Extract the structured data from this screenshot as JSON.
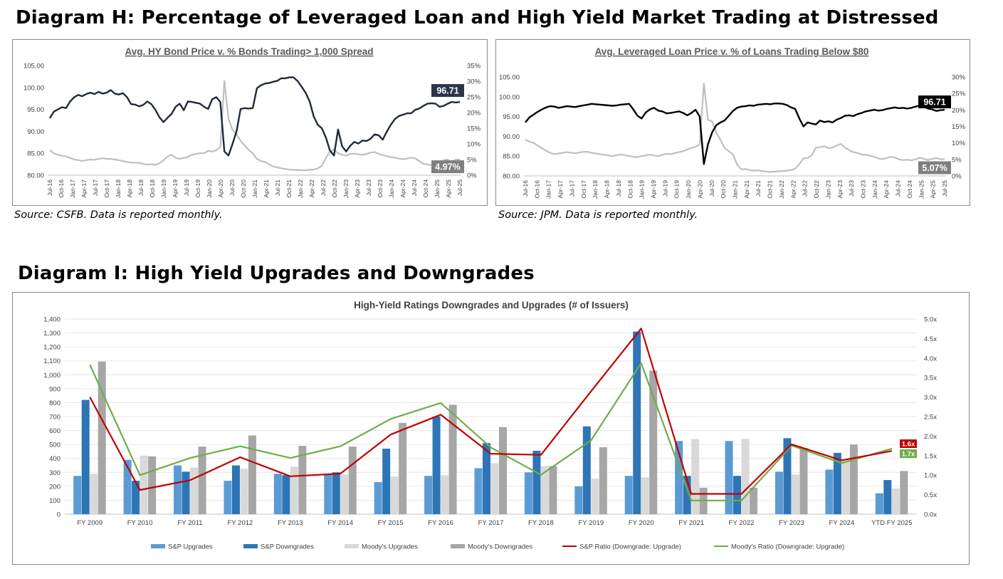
{
  "diagram_h": {
    "heading": "Diagram H: Percentage of Leveraged Loan and High Yield Market Trading at Distressed",
    "left_source": "Source: CSFB. Data is reported monthly.",
    "right_source": "Source: JPM. Data is reported monthly."
  },
  "diagram_i": {
    "heading": "Diagram I: High Yield Upgrades and Downgrades"
  },
  "colors": {
    "sp_upgrades": "#5b9bd5",
    "sp_downgrades": "#2e75b6",
    "moodys_upgrades": "#d9d9d9",
    "moodys_downgrades": "#a6a6a6",
    "sp_ratio": "#c00000",
    "moodys_ratio": "#70ad47",
    "hy_price_line": "#1f2a3a",
    "loan_price_line": "#000000",
    "pct_line": "#bfbfbf"
  },
  "chart_data": [
    {
      "type": "line",
      "title": "Avg. HY Bond Price v. % Bonds Trading> 1,000 Spread",
      "x_ticks": [
        "Jul-16",
        "Oct-16",
        "Jan-17",
        "Apr-17",
        "Jul-17",
        "Oct-17",
        "Jan-18",
        "Apr-18",
        "Jul-18",
        "Oct-18",
        "Jan-19",
        "Apr-19",
        "Jul-19",
        "Oct-19",
        "Jan-20",
        "Apr-20",
        "Jul-20",
        "Oct-20",
        "Jan-21",
        "Apr-21",
        "Jul-21",
        "Oct-21",
        "Jan-22",
        "Apr-22",
        "Jul-22",
        "Oct-22",
        "Jan-23",
        "Apr-23",
        "Jul-23",
        "Oct-23",
        "Jan-24",
        "Apr-24",
        "Jul-24",
        "Oct-24",
        "Jan-25",
        "Apr-25",
        "Jul-25"
      ],
      "y_left_ticks": [
        "80.00",
        "85.00",
        "90.00",
        "95.00",
        "100.00",
        "105.00"
      ],
      "y_left_range": [
        80,
        105
      ],
      "y_right_ticks": [
        "0%",
        "5%",
        "10%",
        "15%",
        "20%",
        "25%",
        "30%",
        "35%"
      ],
      "y_right_range": [
        0,
        35
      ],
      "series": [
        {
          "axis": "left",
          "values": [
            93,
            94.5,
            95,
            95.5,
            95.3,
            96.8,
            97.8,
            98.3,
            98,
            98.5,
            98.8,
            98.5,
            99,
            98.6,
            98.8,
            99.4,
            98.6,
            98.4,
            98.7,
            97.8,
            96.2,
            96.1,
            95.7,
            96,
            96.8,
            96.2,
            94.9,
            93.2,
            92.1,
            93.1,
            94,
            95.6,
            96.3,
            94.8,
            96.8,
            96.7,
            96.5,
            96.3,
            95.6,
            95.1,
            97.3,
            97.8,
            96.7,
            85.4,
            84.5,
            87.1,
            90,
            95.1,
            95.3,
            95.2,
            95.3,
            99.8,
            100.5,
            100.9,
            101,
            101.3,
            101.5,
            102.1,
            102.1,
            102.3,
            102.3,
            101.5,
            100.2,
            98.8,
            96.8,
            93.4,
            91.5,
            90.7,
            88.6,
            85.6,
            84.5,
            90.4,
            86.6,
            85.4,
            86.7,
            87.6,
            87.2,
            87.9,
            87.8,
            88.3,
            89.3,
            89.1,
            88.1,
            89.9,
            91.5,
            92.8,
            93.5,
            93.8,
            94.1,
            94.1,
            94.9,
            95.2,
            95.8,
            96.3,
            96.4,
            96.3,
            95.6,
            95.8,
            96.3,
            96.7,
            96.58,
            96.71
          ]
        },
        {
          "axis": "right",
          "values": [
            8,
            7,
            6.5,
            6.2,
            6,
            5.5,
            5,
            4.8,
            4.6,
            4.8,
            5,
            4.9,
            5.2,
            5.4,
            5.2,
            5.2,
            5,
            4.8,
            4.5,
            4.2,
            4,
            4,
            3.9,
            3.6,
            3.4,
            3.5,
            3.3,
            3.8,
            4.8,
            6,
            6.5,
            5.5,
            5.2,
            5.5,
            5.8,
            6.5,
            6.8,
            7,
            7,
            7.8,
            7.5,
            8,
            9,
            30,
            18,
            14.5,
            13,
            11,
            9.5,
            8,
            7,
            5.2,
            4.5,
            4.2,
            3.5,
            2.8,
            2.5,
            2.2,
            2,
            1.8,
            1.7,
            1.7,
            1.6,
            1.6,
            1.7,
            1.8,
            2.2,
            3,
            5.5,
            7.5,
            8.2,
            7,
            6.5,
            6.3,
            6.8,
            6.9,
            6.7,
            6.5,
            6.8,
            7.2,
            7.4,
            6.8,
            6.4,
            6.1,
            5.8,
            5.6,
            5.3,
            5.1,
            5.3,
            5.6,
            5.4,
            4.5,
            3.6,
            3.4,
            3.2,
            3.1,
            3.6,
            4.8,
            5,
            4.2,
            4.97,
            4.97
          ]
        }
      ],
      "annotations": [
        "96.71",
        "4.97%"
      ]
    },
    {
      "type": "line",
      "title": "Avg. Leveraged Loan Price v. % of Loans Trading Below $80",
      "x_ticks": [
        "Jul-16",
        "Oct-16",
        "Jan-17",
        "Apr-17",
        "Jul-17",
        "Oct-17",
        "Jan-18",
        "Apr-18",
        "Jul-18",
        "Oct-18",
        "Jan-19",
        "Apr-19",
        "Jul-19",
        "Oct-19",
        "Jan-20",
        "Apr-20",
        "Jul-20",
        "Oct-20",
        "Jan-21",
        "Apr-21",
        "Jul-21",
        "Oct-21",
        "Jan-22",
        "Apr-22",
        "Jul-22",
        "Oct-22",
        "Jan-23",
        "Apr-23",
        "Jul-23",
        "Oct-23",
        "Jan-24",
        "Apr-24",
        "Jul-24",
        "Oct-24",
        "Jan-25",
        "Apr-25",
        "Jul-25"
      ],
      "y_left_ticks": [
        "80.00",
        "85.00",
        "90.00",
        "95.00",
        "100.00",
        "105.00"
      ],
      "y_left_range": [
        80,
        105
      ],
      "y_right_ticks": [
        "0%",
        "5%",
        "10%",
        "15%",
        "20%",
        "25%",
        "30%"
      ],
      "y_right_range": [
        0,
        30
      ],
      "series": [
        {
          "axis": "left",
          "values": [
            93.5,
            94.8,
            95.5,
            96.2,
            96.8,
            97.3,
            97.6,
            97.5,
            97.2,
            97.4,
            97.6,
            97.5,
            97.4,
            97.6,
            97.8,
            98,
            98.2,
            98.1,
            98,
            97.9,
            97.8,
            97.7,
            97.8,
            98,
            98.1,
            98.2,
            96.8,
            95.2,
            94.5,
            96,
            96.8,
            97.2,
            96.5,
            96.3,
            95.8,
            95.9,
            96.1,
            96.3,
            95.9,
            95.3,
            95.9,
            96.7,
            95,
            83,
            88,
            91,
            92.8,
            93.5,
            94,
            95.2,
            96.4,
            97.2,
            97.5,
            97.6,
            97.8,
            97.7,
            98,
            98.1,
            98.2,
            98.1,
            98.3,
            98.3,
            98.2,
            97.9,
            97.3,
            96.9,
            94.5,
            92.5,
            93.5,
            93.2,
            93,
            94,
            93.6,
            93.8,
            93.5,
            94.2,
            94.6,
            95.2,
            95.3,
            95.1,
            95.6,
            95.9,
            96.3,
            96.5,
            96.7,
            96.5,
            96.6,
            96.9,
            97.1,
            97.3,
            97.1,
            97.2,
            97,
            97.2,
            97.5,
            97.8,
            97.5,
            97,
            96.8,
            96.4,
            96.6,
            96.71
          ]
        },
        {
          "axis": "right",
          "values": [
            11,
            10.4,
            10,
            9.2,
            8.4,
            7.6,
            7,
            6.6,
            6.8,
            7,
            7.2,
            7,
            6.9,
            7.1,
            7.3,
            7.3,
            7,
            6.8,
            6.6,
            6.4,
            6.2,
            6,
            6.3,
            6.5,
            6.3,
            6,
            5.8,
            5.7,
            6,
            6.2,
            6.5,
            6.2,
            6,
            6.4,
            6.7,
            6.6,
            6.9,
            7.2,
            7.5,
            8,
            8.5,
            8.8,
            9.5,
            28,
            17,
            16.5,
            13,
            11,
            8.5,
            7.5,
            6.5,
            3.5,
            2,
            2.1,
            1.8,
            1.6,
            1.7,
            1.5,
            1.3,
            1.2,
            1.3,
            1.4,
            1.5,
            1.6,
            1.8,
            2.2,
            3.6,
            5.3,
            5.4,
            6.3,
            8.6,
            8.7,
            9,
            8.4,
            8.6,
            9.2,
            9.7,
            8.6,
            7.8,
            7.2,
            7,
            6.5,
            6.4,
            6.1,
            5.8,
            5.3,
            5.1,
            5.4,
            5.8,
            5.6,
            5,
            4.8,
            4.9,
            4.7,
            5,
            5.5,
            5.2,
            4.8,
            5.2,
            5.4,
            5.07,
            5.07
          ]
        }
      ],
      "annotations": [
        "96.71",
        "5.07%"
      ]
    },
    {
      "type": "bar",
      "title": "High-Yield Ratings Downgrades and Upgrades (# of Issuers)",
      "categories": [
        "FY 2009",
        "FY 2010",
        "FY 2011",
        "FY 2012",
        "FY 2013",
        "FY 2014",
        "FY 2015",
        "FY 2016",
        "FY 2017",
        "FY 2018",
        "FY 2019",
        "FY 2020",
        "FY 2021",
        "FY 2022",
        "FY 2023",
        "FY 2024",
        "YTD FY 2025"
      ],
      "y_left_ticks": [
        "0",
        "100",
        "200",
        "300",
        "400",
        "500",
        "600",
        "700",
        "800",
        "900",
        "1,000",
        "1,100",
        "1,200",
        "1,300",
        "1,400"
      ],
      "y_left_range": [
        0,
        1400
      ],
      "y_right_ticks": [
        "0.0x",
        "0.5x",
        "1.0x",
        "1.5x",
        "2.0x",
        "2.5x",
        "3.0x",
        "3.5x",
        "4.0x",
        "4.5x",
        "5.0x"
      ],
      "y_right_range": [
        0,
        5
      ],
      "series": [
        {
          "name": "S&P Upgrades",
          "kind": "bar",
          "values": [
            275,
            390,
            350,
            240,
            290,
            290,
            230,
            275,
            330,
            300,
            200,
            275,
            525,
            525,
            305,
            320,
            150
          ]
        },
        {
          "name": "S&P Downgrades",
          "kind": "bar",
          "values": [
            820,
            240,
            305,
            350,
            280,
            300,
            470,
            700,
            510,
            455,
            630,
            1310,
            275,
            275,
            545,
            440,
            245
          ]
        },
        {
          "name": "Moody's Upgrades",
          "kind": "bar",
          "values": [
            290,
            420,
            335,
            325,
            340,
            285,
            270,
            280,
            365,
            345,
            255,
            265,
            540,
            540,
            285,
            380,
            185
          ]
        },
        {
          "name": "Moody's Downgrades",
          "kind": "bar",
          "values": [
            1095,
            415,
            485,
            565,
            490,
            485,
            655,
            785,
            625,
            345,
            480,
            1030,
            190,
            190,
            475,
            500,
            310
          ]
        },
        {
          "name": "S&P Ratio (Downgrade: Upgrade)",
          "kind": "line",
          "values": [
            3.0,
            0.62,
            0.87,
            1.46,
            0.97,
            1.04,
            2.04,
            2.55,
            1.55,
            1.52,
            3.15,
            4.76,
            0.52,
            0.52,
            1.79,
            1.38,
            1.62
          ]
        },
        {
          "name": "Moody's Ratio (Downgrade: Upgrade)",
          "kind": "line",
          "values": [
            3.83,
            1.0,
            1.44,
            1.74,
            1.44,
            1.74,
            2.44,
            2.85,
            1.71,
            1.01,
            1.89,
            3.87,
            0.35,
            0.35,
            1.76,
            1.31,
            1.68
          ]
        }
      ],
      "end_labels": [
        "1.6x",
        "1.7x"
      ],
      "legend_position": "bottom"
    }
  ]
}
